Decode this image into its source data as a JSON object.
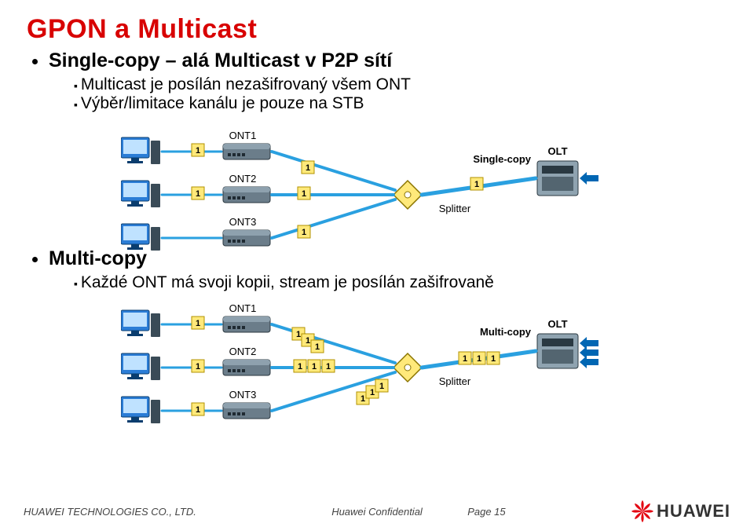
{
  "title": "GPON a Multicast",
  "section1": {
    "heading": "Single-copy – alá Multicast v P2P sítí",
    "bullets": [
      "Multicast je posílán nezašifrovaný všem ONT",
      "Výběr/limitace kanálu je pouze na STB"
    ]
  },
  "section2": {
    "heading": "Multi-copy",
    "bullets": [
      "Každé ONT má svoji kopii, stream je posílán zašifrovaně"
    ]
  },
  "diagram_common": {
    "nodes": {
      "ONT1": "ONT1",
      "ONT2": "ONT2",
      "ONT3": "ONT3",
      "Splitter": "Splitter",
      "OLT": "OLT"
    },
    "colors": {
      "link": "#2aa0e0",
      "page_label_bg": "#ffe97a",
      "page_label_border": "#b29200",
      "device_gray": "#6b7d8a",
      "device_dark": "#3c4a55",
      "monitor": "#2b7dd6",
      "olt": "#8fa3b0",
      "arrow": "#0066b3",
      "splitter_fill": "#ffe97a",
      "splitter_stroke": "#8a7400"
    },
    "label_fontsize": 13,
    "packet_fontsize": 11
  },
  "diagram1": {
    "mode_label": "Single-copy",
    "packets": [
      "1",
      "1",
      "1",
      "1",
      "1",
      "1"
    ]
  },
  "diagram2": {
    "mode_label": "Multi-copy",
    "packets": [
      "1",
      "1",
      "1",
      "1",
      "1",
      "1",
      "1",
      "1",
      "1",
      "1",
      "1",
      "1"
    ]
  },
  "footer": {
    "left": "HUAWEI TECHNOLOGIES CO., LTD.",
    "mid": "Huawei Confidential",
    "page": "Page 15",
    "brand": "HUAWEI"
  }
}
